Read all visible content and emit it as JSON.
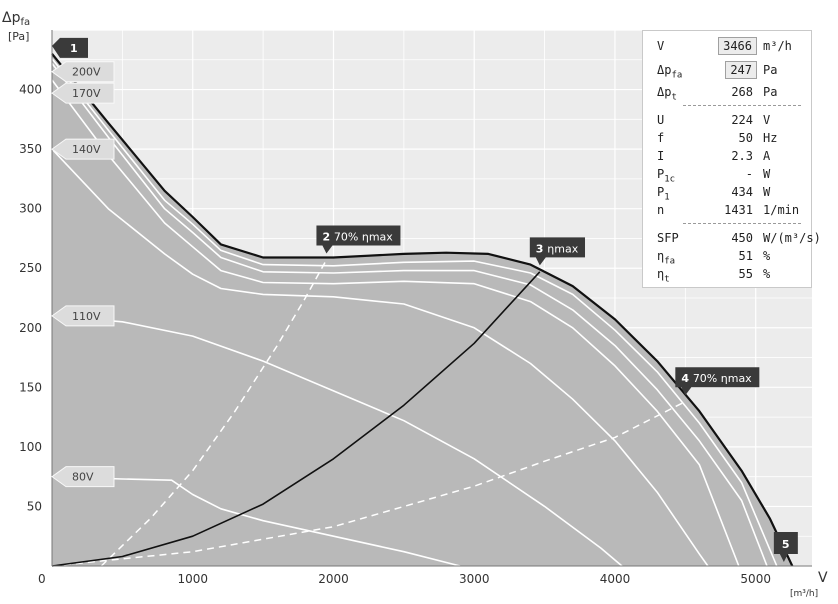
{
  "axes": {
    "y_label": "Δp",
    "y_label_sub": "fa",
    "y_unit": "[Pa]",
    "x_label": "V",
    "x_unit": "[m³/h]",
    "x_ticks": [
      "0",
      "1000",
      "2000",
      "3000",
      "4000",
      "5000"
    ],
    "y_ticks": [
      "50",
      "100",
      "150",
      "200",
      "250",
      "300",
      "350",
      "400"
    ]
  },
  "chart_data": {
    "type": "line",
    "xlim": [
      0,
      5400
    ],
    "ylim": [
      0,
      450
    ],
    "grid": true,
    "series": [
      {
        "name": "200V",
        "style": "max",
        "points": [
          [
            0,
            430
          ],
          [
            400,
            372
          ],
          [
            800,
            315
          ],
          [
            1000,
            293
          ],
          [
            1200,
            270
          ],
          [
            1500,
            259
          ],
          [
            2000,
            259
          ],
          [
            2500,
            262
          ],
          [
            2800,
            263
          ],
          [
            3100,
            262
          ],
          [
            3400,
            253
          ],
          [
            3700,
            235
          ],
          [
            4000,
            207
          ],
          [
            4300,
            172
          ],
          [
            4600,
            130
          ],
          [
            4900,
            80
          ],
          [
            5100,
            40
          ],
          [
            5260,
            0
          ]
        ]
      },
      {
        "name": "",
        "style": "white",
        "points": [
          [
            0,
            426
          ],
          [
            400,
            366
          ],
          [
            800,
            307
          ],
          [
            1000,
            287
          ],
          [
            1200,
            265
          ],
          [
            1500,
            253
          ],
          [
            2000,
            252
          ],
          [
            2500,
            255
          ],
          [
            3000,
            256
          ],
          [
            3400,
            246
          ],
          [
            3700,
            228
          ],
          [
            4000,
            198
          ],
          [
            4300,
            163
          ],
          [
            4600,
            120
          ],
          [
            4900,
            70
          ],
          [
            5150,
            0
          ]
        ]
      },
      {
        "name": "",
        "style": "white",
        "points": [
          [
            0,
            422
          ],
          [
            400,
            360
          ],
          [
            800,
            300
          ],
          [
            1000,
            280
          ],
          [
            1200,
            259
          ],
          [
            1500,
            247
          ],
          [
            2000,
            246
          ],
          [
            2500,
            248
          ],
          [
            3000,
            248
          ],
          [
            3400,
            236
          ],
          [
            3700,
            215
          ],
          [
            4000,
            185
          ],
          [
            4300,
            148
          ],
          [
            4600,
            105
          ],
          [
            4900,
            55
          ],
          [
            5080,
            0
          ]
        ]
      },
      {
        "name": "170V",
        "style": "white",
        "points": [
          [
            0,
            408
          ],
          [
            400,
            345
          ],
          [
            800,
            288
          ],
          [
            1000,
            268
          ],
          [
            1200,
            248
          ],
          [
            1500,
            238
          ],
          [
            2000,
            237
          ],
          [
            2500,
            239
          ],
          [
            3000,
            237
          ],
          [
            3400,
            222
          ],
          [
            3700,
            200
          ],
          [
            4000,
            168
          ],
          [
            4300,
            130
          ],
          [
            4600,
            85
          ],
          [
            4880,
            0
          ]
        ]
      },
      {
        "name": "140V",
        "style": "white",
        "points": [
          [
            0,
            350
          ],
          [
            400,
            300
          ],
          [
            800,
            262
          ],
          [
            1000,
            245
          ],
          [
            1200,
            233
          ],
          [
            1500,
            228
          ],
          [
            2000,
            226
          ],
          [
            2500,
            220
          ],
          [
            3000,
            200
          ],
          [
            3400,
            170
          ],
          [
            3700,
            140
          ],
          [
            4000,
            105
          ],
          [
            4300,
            62
          ],
          [
            4600,
            10
          ],
          [
            4660,
            0
          ]
        ]
      },
      {
        "name": "110V",
        "style": "white",
        "points": [
          [
            0,
            210
          ],
          [
            500,
            205
          ],
          [
            1000,
            193
          ],
          [
            1500,
            172
          ],
          [
            2000,
            147
          ],
          [
            2500,
            122
          ],
          [
            3000,
            90
          ],
          [
            3500,
            50
          ],
          [
            3900,
            15
          ],
          [
            4050,
            0
          ]
        ]
      },
      {
        "name": "80V",
        "style": "white",
        "points": [
          [
            0,
            75
          ],
          [
            500,
            73
          ],
          [
            850,
            72
          ],
          [
            1000,
            60
          ],
          [
            1200,
            48
          ],
          [
            1500,
            38
          ],
          [
            2000,
            25
          ],
          [
            2500,
            12
          ],
          [
            2900,
            0
          ]
        ]
      },
      {
        "name": "3 ηmax",
        "style": "black",
        "points": [
          [
            0,
            0
          ],
          [
            500,
            8
          ],
          [
            1000,
            25
          ],
          [
            1500,
            52
          ],
          [
            2000,
            90
          ],
          [
            2500,
            135
          ],
          [
            3000,
            187
          ],
          [
            3466,
            247
          ]
        ]
      },
      {
        "name": "2 70% ηmax",
        "style": "dash",
        "points": [
          [
            350,
            0
          ],
          [
            700,
            40
          ],
          [
            1000,
            80
          ],
          [
            1300,
            130
          ],
          [
            1600,
            185
          ],
          [
            1800,
            225
          ],
          [
            1950,
            257
          ]
        ]
      },
      {
        "name": "4 70% ηmax",
        "style": "dash",
        "points": [
          [
            0,
            0
          ],
          [
            1000,
            12
          ],
          [
            2000,
            33
          ],
          [
            3000,
            67
          ],
          [
            3500,
            88
          ],
          [
            4000,
            108
          ],
          [
            4500,
            138
          ]
        ]
      }
    ],
    "voltage_labels": [
      {
        "text": "200V",
        "y": 415
      },
      {
        "text": "170V",
        "y": 397
      },
      {
        "text": "140V",
        "y": 350
      },
      {
        "text": "110V",
        "y": 210
      },
      {
        "text": "80V",
        "y": 75
      }
    ],
    "markers": [
      {
        "num": "1",
        "text": "",
        "x": 0,
        "y": 430,
        "pos": "left"
      },
      {
        "num": "2",
        "text": "70% ηmax",
        "x": 1950,
        "y": 259,
        "pos": "up"
      },
      {
        "num": "3",
        "text": "ηmax",
        "x": 3466,
        "y": 249,
        "pos": "up"
      },
      {
        "num": "4",
        "text": "70% ηmax",
        "x": 4500,
        "y": 140,
        "pos": "up"
      },
      {
        "num": "5",
        "text": "",
        "x": 5200,
        "y": 0,
        "pos": "bottom"
      }
    ]
  },
  "info": {
    "rows": [
      {
        "label": "V",
        "sub": "",
        "value": "3466",
        "unit": "m³/h",
        "boxed": true
      },
      {
        "label": "Δp",
        "sub": "fa",
        "value": "247",
        "unit": "Pa",
        "boxed": true
      },
      {
        "label": "Δp",
        "sub": "t",
        "value": "268",
        "unit": "Pa",
        "boxed": false
      },
      {
        "label": "U",
        "sub": "",
        "value": "224",
        "unit": "V",
        "boxed": false
      },
      {
        "label": "f",
        "sub": "",
        "value": "50",
        "unit": "Hz",
        "boxed": false
      },
      {
        "label": "I",
        "sub": "",
        "value": "2.3",
        "unit": "A",
        "boxed": false
      },
      {
        "label": "P",
        "sub": "1c",
        "value": "-",
        "unit": "W",
        "boxed": false
      },
      {
        "label": "P",
        "sub": "1",
        "value": "434",
        "unit": "W",
        "boxed": false
      },
      {
        "label": "n",
        "sub": "",
        "value": "1431",
        "unit": "1/min",
        "boxed": false
      },
      {
        "label": "SFP",
        "sub": "",
        "value": "450",
        "unit": "W/(m³/s)",
        "boxed": false
      },
      {
        "label": "η",
        "sub": "fa",
        "value": "51",
        "unit": "%",
        "boxed": false
      },
      {
        "label": "η",
        "sub": "t",
        "value": "55",
        "unit": "%",
        "boxed": false
      }
    ]
  }
}
